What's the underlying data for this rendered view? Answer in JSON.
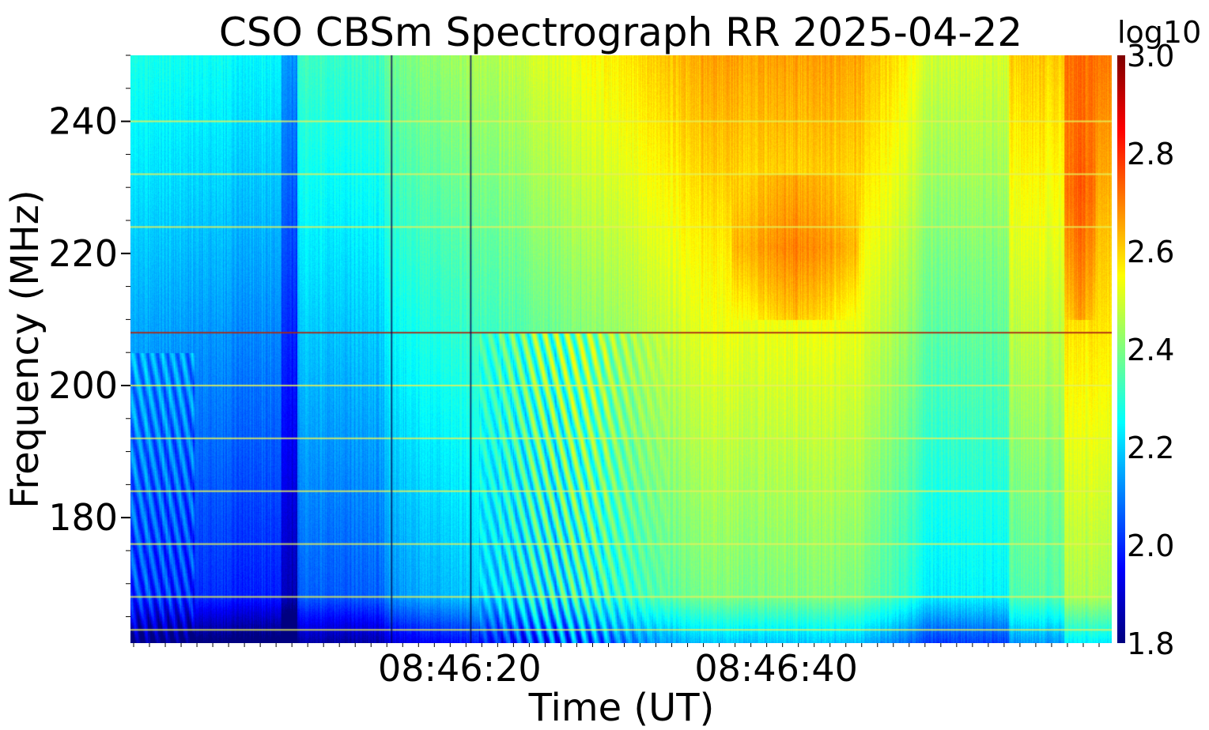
{
  "chart_data": {
    "type": "heatmap",
    "title": "CSO CBSm Spectrograph RR 2025-04-22",
    "xlabel": "Time (UT)",
    "ylabel": "Frequency (MHz)",
    "x_tick_labels": [
      "08:46:20",
      "08:46:40"
    ],
    "y_ticks": [
      180,
      200,
      220,
      240
    ],
    "ylim": [
      161,
      250
    ],
    "colorbar": {
      "label": "log10",
      "ticks": [
        "1.8",
        "2.0",
        "2.2",
        "2.4",
        "2.6",
        "2.8",
        "3.0"
      ],
      "range": [
        1.8,
        3.0
      ],
      "colormap": "jet"
    },
    "features": {
      "broadband_bursts_at_s": [
        16.5,
        21.5
      ],
      "bright_patch_regions": [
        {
          "t_from_s": 38,
          "t_to_s": 46,
          "f_from_MHz": 210,
          "f_to_MHz": 232,
          "value": 2.7
        },
        {
          "t_from_s": 59,
          "t_to_s": 61,
          "f_from_MHz": 210,
          "f_to_MHz": 250,
          "value": 2.75
        }
      ],
      "rfi_lines_MHz": [
        163,
        168,
        176,
        184,
        192,
        200,
        208,
        224,
        232,
        240
      ]
    }
  }
}
